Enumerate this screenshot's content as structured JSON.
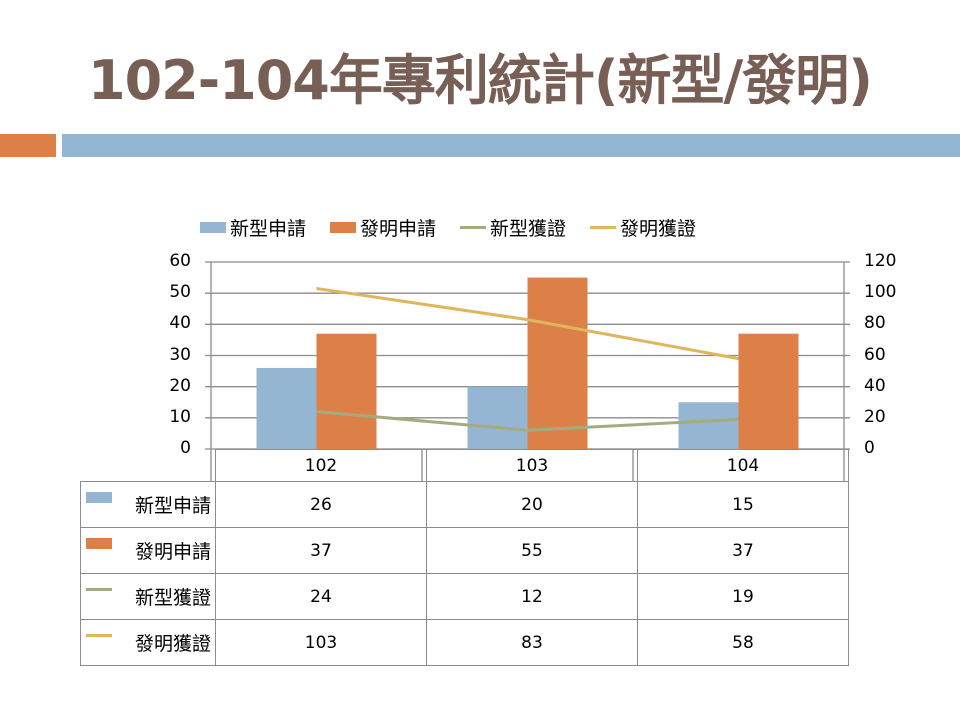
{
  "title": "102-104年專利統計(新型/發明)",
  "colors": {
    "title": "#775f55",
    "accent_orange": "#dd8047",
    "accent_blue": "#94b6d2",
    "gridline": "#8c8c8c"
  },
  "chart_data": {
    "type": "bar",
    "title": "",
    "categories": [
      "102",
      "103",
      "104"
    ],
    "series": [
      {
        "name": "新型申請",
        "kind": "bar",
        "axis": "left",
        "color": "#94b6d2",
        "values": [
          26,
          20,
          15
        ]
      },
      {
        "name": "發明申請",
        "kind": "bar",
        "axis": "left",
        "color": "#dd8047",
        "values": [
          37,
          55,
          37
        ]
      },
      {
        "name": "新型獲證",
        "kind": "line",
        "axis": "right",
        "color": "#a5ab81",
        "values": [
          24,
          12,
          19
        ]
      },
      {
        "name": "發明獲證",
        "kind": "line",
        "axis": "right",
        "color": "#dfb55d",
        "values": [
          103,
          83,
          58
        ]
      }
    ],
    "left_axis": {
      "ticks": [
        "0",
        "10",
        "20",
        "30",
        "40",
        "50",
        "60"
      ],
      "ylim": [
        0,
        60
      ]
    },
    "right_axis": {
      "ticks": [
        "0",
        "20",
        "40",
        "60",
        "80",
        "100",
        "120"
      ],
      "ylim": [
        0,
        120
      ]
    },
    "xlabel": "",
    "ylabel": "",
    "grid": true,
    "legend_position": "top",
    "data_table": true
  },
  "legend": [
    {
      "label": "新型申請"
    },
    {
      "label": "發明申請"
    },
    {
      "label": "新型獲證"
    },
    {
      "label": "發明獲證"
    }
  ],
  "table": {
    "columns": [
      "102",
      "103",
      "104"
    ],
    "rows": [
      {
        "label": "新型申請",
        "values": [
          "26",
          "20",
          "15"
        ]
      },
      {
        "label": "發明申請",
        "values": [
          "37",
          "55",
          "37"
        ]
      },
      {
        "label": "新型獲證",
        "values": [
          "24",
          "12",
          "19"
        ]
      },
      {
        "label": "發明獲證",
        "values": [
          "103",
          "83",
          "58"
        ]
      }
    ]
  }
}
